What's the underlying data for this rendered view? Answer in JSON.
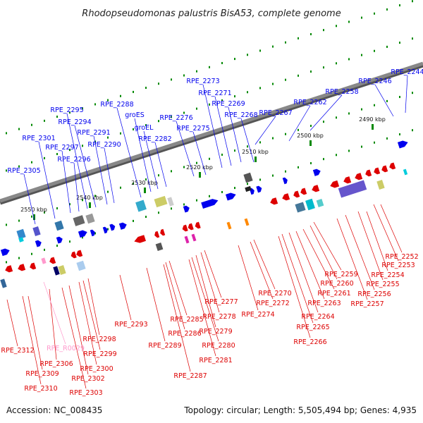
{
  "title": "Rhodopseudomonas palustris BisA53, complete genome",
  "footer": {
    "accession": "Accession: NC_008435",
    "topology": "Topology: circular; Length: 5,505,494 bp; Genes: 4,935"
  },
  "colors": {
    "plus_strand": "#0000ee",
    "minus_strand": "#dd0000",
    "rna": "#ff99cc",
    "ticks": "#008800",
    "backbone": "#888888"
  },
  "scale_ticks": [
    "2490 kbp",
    "2500 kbp",
    "2510 kbp",
    "2520 kbp",
    "2530 kbp",
    "2540 kbp",
    "2550 kbp"
  ],
  "top_labels": [
    "RPE_2244",
    "RPE_2246",
    "RPE_2258",
    "RPE_2262",
    "RPE_2267",
    "RPE_2268",
    "RPE_2269",
    "RPE_2271",
    "RPE_2273",
    "RPE_2275",
    "RPE_2276",
    "RPE_2282",
    "groEL",
    "groES",
    "RPE_2288",
    "RPE_2290",
    "RPE_2291",
    "RPE_2294",
    "RPE_2295",
    "RPE_2296",
    "RPE_2297",
    "RPE_2301",
    "RPE_2305"
  ],
  "bottom_labels": [
    "RPE_2252",
    "RPE_2253",
    "RPE_2254",
    "RPE_2255",
    "RPE_2256",
    "RPE_2257",
    "RPE_2259",
    "RPE_2260",
    "RPE_2261",
    "RPE_2263",
    "RPE_2264",
    "RPE_2265",
    "RPE_2266",
    "RPE_2270",
    "RPE_2272",
    "RPE_2274",
    "RPE_2277",
    "RPE_2278",
    "RPE_2279",
    "RPE_2280",
    "RPE_2281",
    "RPE_2285",
    "RPE_2286",
    "RPE_2287",
    "RPE_2289",
    "RPE_2293",
    "RPE_2298",
    "RPE_2299",
    "RPE_2300",
    "RPE_2302",
    "RPE_2303",
    "RPE_2306",
    "RPE_R0029",
    "RPE_2309",
    "RPE_2310",
    "RPE_2312"
  ]
}
